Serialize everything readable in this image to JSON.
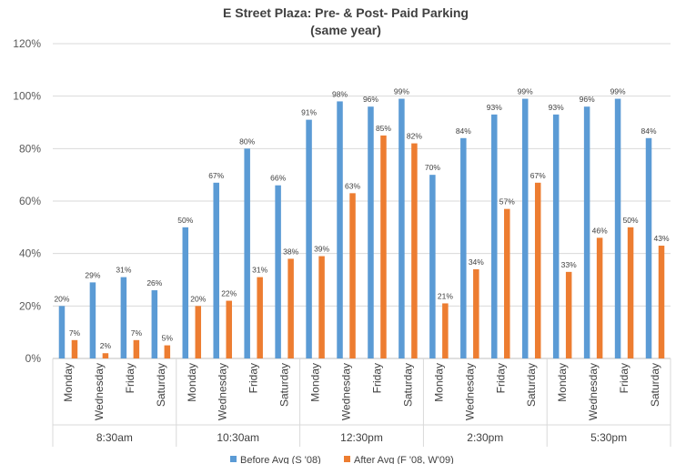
{
  "chart_data": {
    "type": "bar",
    "title": "E Street Plaza: Pre- & Post- Paid Parking",
    "subtitle": "(same year)",
    "xlabel": "",
    "ylabel": "",
    "ylim": [
      0,
      120
    ],
    "y_ticks": [
      "0%",
      "20%",
      "40%",
      "60%",
      "80%",
      "100%",
      "120%"
    ],
    "grid": true,
    "legend_position": "bottom",
    "groups": [
      "8:30am",
      "10:30am",
      "12:30pm",
      "2:30pm",
      "5:30pm"
    ],
    "days": [
      "Monday",
      "Wednesday",
      "Friday",
      "Saturday"
    ],
    "categories": [
      "Monday",
      "Wednesday",
      "Friday",
      "Saturday",
      "Monday",
      "Wednesday",
      "Friday",
      "Saturday",
      "Monday",
      "Wednesday",
      "Friday",
      "Saturday",
      "Monday",
      "Wednesday",
      "Friday",
      "Saturday",
      "Monday",
      "Wednesday",
      "Friday",
      "Saturday"
    ],
    "series": [
      {
        "name": "Before Avg (S '08)",
        "color": "#5b9bd5",
        "values": [
          20,
          29,
          31,
          26,
          50,
          67,
          80,
          66,
          91,
          98,
          96,
          99,
          70,
          84,
          93,
          99,
          93,
          96,
          99,
          84
        ],
        "labels": [
          "20%",
          "29%",
          "31%",
          "26%",
          "50%",
          "67%",
          "80%",
          "66%",
          "91%",
          "98%",
          "96%",
          "99%",
          "70%",
          "84%",
          "93%",
          "99%",
          "93%",
          "96%",
          "99%",
          "84%"
        ]
      },
      {
        "name": "After Avg (F '08, W'09)",
        "color": "#ed7d31",
        "values": [
          7,
          2,
          7,
          5,
          20,
          22,
          31,
          38,
          39,
          63,
          85,
          82,
          21,
          34,
          57,
          67,
          33,
          46,
          50,
          43
        ],
        "labels": [
          "7%",
          "2%",
          "7%",
          "5%",
          "20%",
          "22%",
          "31%",
          "38%",
          "39%",
          "63%",
          "85%",
          "82%",
          "21%",
          "34%",
          "57%",
          "67%",
          "33%",
          "46%",
          "50%",
          "43%"
        ]
      }
    ]
  }
}
